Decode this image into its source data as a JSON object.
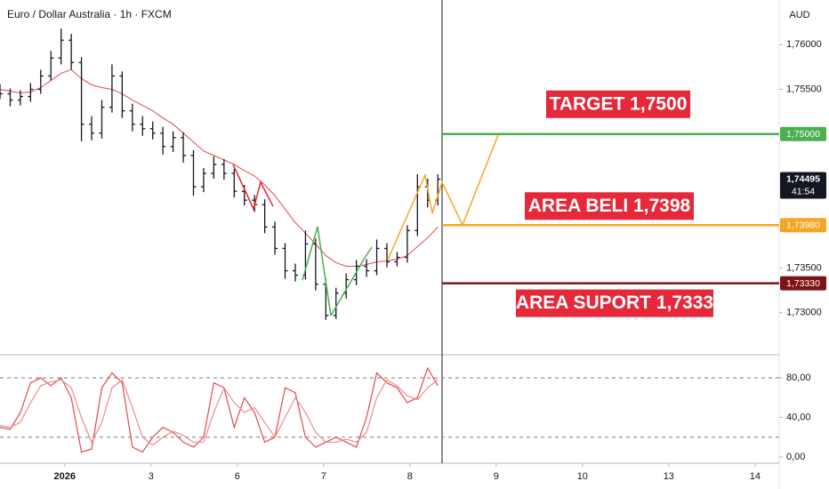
{
  "chart_data": [
    {
      "type": "ohlc",
      "title": "Euro / Dollar Australia · 1h · FXCM",
      "currency": "AUD",
      "xlim": [
        -0.75,
        8.28
      ],
      "ylim": [
        1.7254,
        1.765
      ],
      "yticks": [
        {
          "value": 1.76,
          "label": "1,76000"
        },
        {
          "value": 1.755,
          "label": "1,75500"
        },
        {
          "value": 1.735,
          "label": "1,73500"
        },
        {
          "value": 1.73,
          "label": "1,73000"
        }
      ],
      "color": "#131722",
      "x": [
        -0.75,
        -0.632,
        -0.514,
        -0.396,
        -0.278,
        -0.16,
        -0.042,
        0.076,
        0.194,
        0.312,
        0.43,
        0.548,
        0.666,
        0.784,
        0.902,
        1.02,
        1.138,
        1.256,
        1.374,
        1.492,
        1.61,
        1.728,
        1.846,
        1.964,
        2.082,
        2.2,
        2.318,
        2.436,
        2.554,
        2.672,
        2.79,
        2.908,
        3.026,
        3.144,
        3.262,
        3.38,
        3.498,
        3.616,
        3.734,
        3.852,
        3.97,
        4.088,
        4.206,
        4.324
      ],
      "open": [
        1.755,
        1.7545,
        1.7538,
        1.7542,
        1.755,
        1.7565,
        1.7585,
        1.7605,
        1.758,
        1.7511,
        1.7501,
        1.753,
        1.7565,
        1.7526,
        1.7511,
        1.7506,
        1.7501,
        1.7486,
        1.7496,
        1.7476,
        1.7441,
        1.7456,
        1.7466,
        1.7456,
        1.7436,
        1.7426,
        1.7421,
        1.7396,
        1.7372,
        1.7347,
        1.7342,
        1.7377,
        1.7332,
        1.7297,
        1.7322,
        1.7337,
        1.7352,
        1.7347,
        1.7372,
        1.7357,
        1.7362,
        1.7392,
        1.7441,
        1.7426
      ],
      "high": [
        1.7556,
        1.7551,
        1.7549,
        1.7557,
        1.7572,
        1.7593,
        1.7618,
        1.7612,
        1.7586,
        1.752,
        1.7538,
        1.7578,
        1.757,
        1.7534,
        1.752,
        1.7514,
        1.7508,
        1.7503,
        1.7502,
        1.7482,
        1.7462,
        1.7475,
        1.7472,
        1.7461,
        1.7443,
        1.7432,
        1.7427,
        1.7402,
        1.7378,
        1.7355,
        1.7392,
        1.7383,
        1.7338,
        1.7328,
        1.7344,
        1.7359,
        1.736,
        1.7382,
        1.7378,
        1.7368,
        1.7398,
        1.7455,
        1.745,
        1.7455
      ],
      "low": [
        1.7539,
        1.7531,
        1.7532,
        1.7536,
        1.7545,
        1.756,
        1.7578,
        1.7572,
        1.7492,
        1.7493,
        1.7495,
        1.7524,
        1.7518,
        1.7503,
        1.7498,
        1.7494,
        1.7477,
        1.748,
        1.7468,
        1.7431,
        1.7435,
        1.745,
        1.7449,
        1.7429,
        1.742,
        1.7413,
        1.7389,
        1.7365,
        1.7338,
        1.7335,
        1.7337,
        1.7325,
        1.7292,
        1.7293,
        1.7316,
        1.7331,
        1.734,
        1.7342,
        1.7351,
        1.7352,
        1.7356,
        1.7386,
        1.7418,
        1.742
      ],
      "close": [
        1.7545,
        1.7538,
        1.7542,
        1.755,
        1.7565,
        1.7585,
        1.7605,
        1.758,
        1.7511,
        1.7501,
        1.753,
        1.7565,
        1.7526,
        1.7511,
        1.7506,
        1.7501,
        1.7486,
        1.7496,
        1.7476,
        1.7441,
        1.7456,
        1.7466,
        1.7456,
        1.7436,
        1.7426,
        1.7421,
        1.7396,
        1.7372,
        1.7347,
        1.7342,
        1.7377,
        1.7332,
        1.7297,
        1.7322,
        1.7337,
        1.7352,
        1.7347,
        1.7372,
        1.7357,
        1.7362,
        1.7392,
        1.7441,
        1.7426,
        1.74495
      ],
      "ma": {
        "color": "#e5484d",
        "values": [
          1.755,
          1.7548,
          1.7546,
          1.7547,
          1.7552,
          1.756,
          1.7568,
          1.7572,
          1.7562,
          1.7555,
          1.7552,
          1.755,
          1.7545,
          1.7538,
          1.7532,
          1.7526,
          1.7518,
          1.7511,
          1.7501,
          1.7491,
          1.7481,
          1.7476,
          1.7471,
          1.7466,
          1.7459,
          1.7453,
          1.7443,
          1.7431,
          1.7416,
          1.7401,
          1.7389,
          1.7377,
          1.7364,
          1.7356,
          1.7352,
          1.7352,
          1.7354,
          1.7357,
          1.7358,
          1.736,
          1.7364,
          1.7374,
          1.7384,
          1.7396
        ]
      },
      "levels": [
        {
          "value": 1.75,
          "label": "1,75000",
          "color": "#4caf50",
          "annotation": "TARGET 1,7500"
        },
        {
          "value": 1.7398,
          "label": "1,73980",
          "color": "#f5a623",
          "annotation": "AREA BELI 1,7398"
        },
        {
          "value": 1.7333,
          "label": "1,73330",
          "color": "#7f1416",
          "annotation": "AREA SUPORT 1,7333"
        }
      ],
      "annotation_color": "#e5283a",
      "last_price": {
        "value": 1.74495,
        "label": "1,74495",
        "countdown": "41:54"
      }
    },
    {
      "type": "line",
      "xlim": [
        -0.75,
        8.28
      ],
      "ylim": [
        -5.4,
        102.5
      ],
      "xticks": [
        {
          "value": 0,
          "label": "2026"
        },
        {
          "value": 1,
          "label": "3"
        },
        {
          "value": 2,
          "label": "6"
        },
        {
          "value": 3,
          "label": "7"
        },
        {
          "value": 4,
          "label": "8"
        },
        {
          "value": 5,
          "label": "9"
        },
        {
          "value": 6,
          "label": "10"
        },
        {
          "value": 7,
          "label": "13"
        },
        {
          "value": 8,
          "label": "14"
        }
      ],
      "yticks": [
        {
          "value": 80,
          "label": "80,00"
        },
        {
          "value": 40,
          "label": "40,00"
        },
        {
          "value": 0,
          "label": "0,00"
        }
      ],
      "bands": [
        80,
        20
      ],
      "x": [
        -0.75,
        -0.632,
        -0.514,
        -0.396,
        -0.278,
        -0.16,
        -0.042,
        0.076,
        0.194,
        0.312,
        0.43,
        0.548,
        0.666,
        0.784,
        0.902,
        1.02,
        1.138,
        1.256,
        1.374,
        1.492,
        1.61,
        1.728,
        1.846,
        1.964,
        2.082,
        2.2,
        2.318,
        2.436,
        2.554,
        2.672,
        2.79,
        2.908,
        3.026,
        3.144,
        3.262,
        3.38,
        3.498,
        3.616,
        3.734,
        3.852,
        3.97,
        4.088,
        4.206,
        4.324
      ],
      "series": [
        {
          "color": "#e5484d",
          "values": [
            30,
            28,
            45,
            75,
            80,
            72,
            80,
            60,
            5,
            8,
            70,
            85,
            75,
            10,
            5,
            20,
            30,
            25,
            15,
            10,
            20,
            75,
            70,
            30,
            60,
            45,
            15,
            20,
            70,
            65,
            20,
            10,
            15,
            20,
            15,
            10,
            40,
            85,
            75,
            70,
            55,
            60,
            90,
            72
          ]
        },
        {
          "color": "#f08a8d",
          "values": [
            32,
            30,
            35,
            55,
            72,
            76,
            78,
            70,
            40,
            15,
            35,
            70,
            78,
            50,
            20,
            12,
            20,
            26,
            22,
            15,
            15,
            45,
            70,
            55,
            45,
            50,
            35,
            20,
            40,
            60,
            45,
            25,
            15,
            15,
            18,
            15,
            25,
            60,
            78,
            72,
            62,
            58,
            70,
            78
          ]
        }
      ]
    }
  ]
}
